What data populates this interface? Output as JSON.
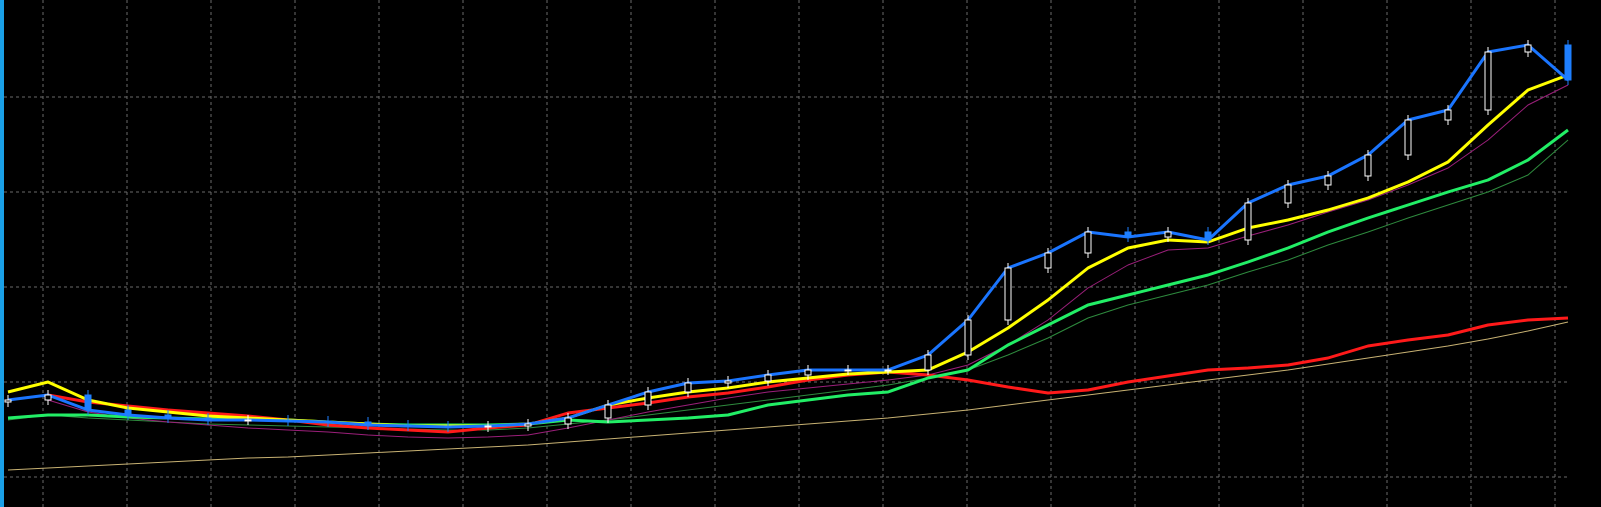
{
  "chart_data": {
    "type": "candlestick",
    "x": [
      0,
      1,
      2,
      3,
      4,
      5,
      6,
      7,
      8,
      9,
      10,
      11,
      12,
      13,
      14,
      15,
      16,
      17,
      18,
      19,
      20,
      21,
      22,
      23,
      24,
      25,
      26,
      27,
      28,
      29,
      30,
      31,
      32,
      33,
      34,
      35,
      36,
      37,
      38,
      39
    ],
    "xlim": [
      -0.1,
      39
    ],
    "ylim": [
      0,
      507
    ],
    "xticks": [
      0.875,
      2.975,
      5.075,
      7.175,
      9.275,
      11.375,
      13.475,
      15.575,
      17.675,
      19.775,
      21.875,
      23.975,
      26.075,
      28.175,
      30.275,
      32.375,
      34.475,
      36.575,
      38.675
    ],
    "yticks": [
      30,
      125,
      220,
      315,
      410
    ],
    "grid": true,
    "candles": {
      "up_color": "#ffffff",
      "down_color": "#1e7fff",
      "open": [
        105,
        107,
        112,
        97,
        92,
        89,
        87,
        87,
        86,
        85,
        82,
        81,
        80,
        81,
        83,
        89,
        102,
        115,
        124,
        126,
        132,
        137,
        137,
        137,
        152,
        187,
        239,
        254,
        275,
        270,
        275,
        267,
        304,
        322,
        331,
        352,
        387,
        397,
        455,
        462
      ],
      "high": [
        112,
        117,
        117,
        102,
        97,
        94,
        92,
        92,
        91,
        90,
        87,
        86,
        86,
        88,
        94,
        107,
        120,
        129,
        131,
        137,
        142,
        142,
        142,
        157,
        192,
        244,
        259,
        280,
        280,
        280,
        280,
        309,
        327,
        336,
        357,
        392,
        402,
        460,
        467,
        467
      ],
      "low": [
        100,
        102,
        92,
        87,
        84,
        82,
        82,
        81,
        80,
        77,
        76,
        75,
        75,
        76,
        78,
        84,
        97,
        110,
        119,
        121,
        127,
        132,
        132,
        132,
        147,
        182,
        234,
        249,
        265,
        265,
        262,
        262,
        299,
        317,
        326,
        347,
        382,
        392,
        450,
        422
      ],
      "close": [
        107,
        112,
        97,
        92,
        89,
        87,
        87,
        86,
        85,
        82,
        81,
        80,
        81,
        83,
        89,
        102,
        115,
        124,
        126,
        132,
        137,
        137,
        137,
        152,
        187,
        239,
        254,
        275,
        270,
        275,
        267,
        304,
        322,
        331,
        352,
        387,
        397,
        455,
        462,
        427
      ]
    },
    "series": [
      {
        "color": "#c8b273",
        "width": 1,
        "values": [
          37,
          39,
          41,
          43,
          45,
          47,
          49,
          50,
          52,
          54,
          56,
          58,
          60,
          62,
          65,
          68,
          71,
          74,
          77,
          80,
          83,
          86,
          89,
          93,
          97,
          102,
          107,
          112,
          117,
          122,
          127,
          132,
          137,
          143,
          149,
          155,
          161,
          168,
          176,
          185
        ]
      },
      {
        "color": "#2e8b3e",
        "width": 1,
        "values": [
          87,
          92,
          89,
          87,
          85,
          83,
          82,
          81,
          80,
          79,
          78,
          77,
          77,
          79,
          83,
          87,
          92,
          97,
          102,
          107,
          112,
          117,
          122,
          129,
          137,
          152,
          169,
          189,
          202,
          212,
          222,
          235,
          247,
          262,
          275,
          289,
          302,
          315,
          332,
          367
        ]
      },
      {
        "color": "#9b1f7a",
        "width": 1,
        "values": [
          null,
          107,
          95,
          89,
          85,
          82,
          79,
          77,
          75,
          72,
          70,
          69,
          70,
          72,
          79,
          87,
          95,
          102,
          109,
          115,
          119,
          123,
          127,
          132,
          142,
          162,
          187,
          219,
          242,
          257,
          259,
          271,
          282,
          295,
          307,
          322,
          339,
          367,
          402,
          422
        ]
      },
      {
        "color": "#ff1a1a",
        "width": 3,
        "values": [
          null,
          112,
          105,
          101,
          97,
          94,
          91,
          87,
          82,
          79,
          77,
          75,
          79,
          82,
          94,
          99,
          104,
          110,
          114,
          120,
          127,
          132,
          135,
          132,
          127,
          120,
          114,
          117,
          125,
          131,
          137,
          139,
          142,
          149,
          161,
          167,
          172,
          182,
          187,
          189
        ]
      },
      {
        "color": "#22ee66",
        "width": 3,
        "values": [
          89,
          92,
          92,
          90,
          89,
          88,
          87,
          87,
          85,
          83,
          82,
          82,
          82,
          83,
          87,
          85,
          87,
          89,
          92,
          102,
          107,
          112,
          115,
          129,
          137,
          162,
          182,
          202,
          212,
          222,
          232,
          245,
          259,
          275,
          289,
          302,
          315,
          327,
          347,
          377
        ]
      },
      {
        "color": "#ffff00",
        "width": 3,
        "values": [
          115,
          125,
          107,
          99,
          95,
          91,
          89,
          87,
          85,
          83,
          81,
          81,
          81,
          83,
          89,
          102,
          109,
          115,
          119,
          125,
          129,
          133,
          135,
          137,
          155,
          179,
          207,
          239,
          259,
          267,
          265,
          279,
          287,
          297,
          309,
          325,
          345,
          382,
          417,
          432
        ]
      },
      {
        "color": "#1a75ff",
        "width": 3,
        "values": [
          107,
          112,
          97,
          92,
          89,
          87,
          87,
          86,
          85,
          82,
          81,
          80,
          81,
          83,
          89,
          102,
          115,
          124,
          126,
          132,
          137,
          137,
          137,
          152,
          187,
          239,
          254,
          275,
          270,
          275,
          267,
          304,
          322,
          331,
          352,
          387,
          397,
          455,
          462,
          427
        ]
      }
    ]
  }
}
